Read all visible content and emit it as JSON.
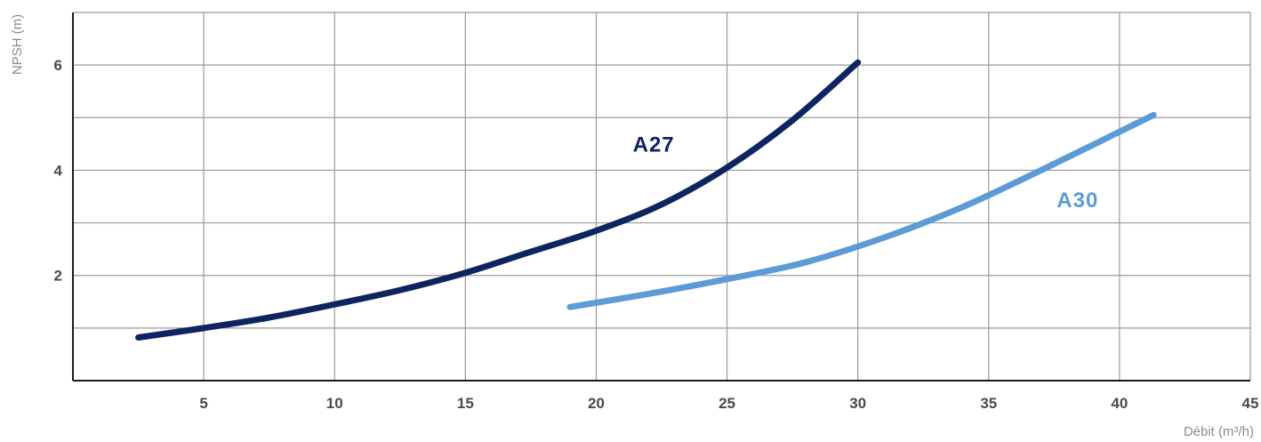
{
  "chart_data": {
    "type": "line",
    "xlabel": "Débit (m³/h)",
    "ylabel": "NPSH (m)",
    "xlim": [
      0,
      45
    ],
    "ylim": [
      0,
      7
    ],
    "x_ticks": [
      5,
      10,
      15,
      20,
      25,
      30,
      35,
      40,
      45
    ],
    "x_tick_labels": [
      "5",
      "10",
      "15",
      "20",
      "25",
      "30",
      "35",
      "40",
      "45"
    ],
    "x_gridlines": [
      5,
      10,
      15,
      20,
      25,
      30,
      35,
      40,
      45
    ],
    "y_ticks": [
      2,
      4,
      6
    ],
    "y_tick_labels": [
      "2",
      "4",
      "6"
    ],
    "y_gridlines": [
      1,
      2,
      3,
      4,
      5,
      6,
      7
    ],
    "grid": true,
    "series": [
      {
        "name": "A27",
        "color": "#0d2460",
        "x": [
          2.5,
          5,
          7.5,
          10,
          12.5,
          15,
          17.5,
          20,
          22.5,
          25,
          27.5,
          30
        ],
        "y": [
          0.82,
          1.0,
          1.2,
          1.45,
          1.72,
          2.05,
          2.45,
          2.85,
          3.35,
          4.05,
          4.95,
          6.05
        ]
      },
      {
        "name": "A30",
        "color": "#5c9bd6",
        "x": [
          19,
          22,
          25,
          28,
          31,
          34,
          37,
          41.3
        ],
        "y": [
          1.4,
          1.65,
          1.93,
          2.25,
          2.72,
          3.3,
          4.0,
          5.05
        ]
      }
    ],
    "annotations": [
      {
        "text": "A27",
        "series": "A27",
        "x": 21.4,
        "y": 4.35,
        "color": "#0d2460"
      },
      {
        "text": "A30",
        "series": "A30",
        "x": 37.6,
        "y": 3.3,
        "color": "#5c9bd6"
      }
    ]
  }
}
